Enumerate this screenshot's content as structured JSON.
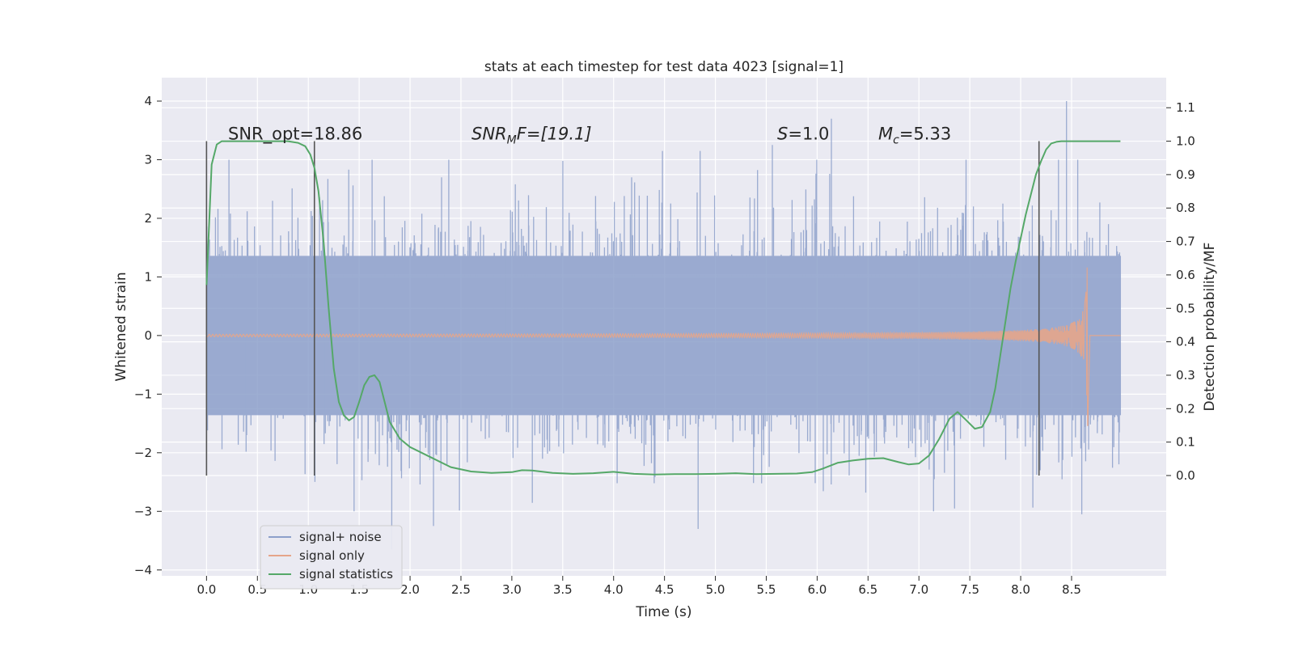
{
  "chart_data": {
    "type": "line",
    "title": "stats at each timestep for test data 4023 [signal=1]",
    "xlabel": "Time (s)",
    "ylabel": "Whitened strain",
    "ylabel_right": "Detection probability/MF",
    "xlim": [
      -0.44,
      9.43
    ],
    "ylim": [
      -4.1,
      4.4
    ],
    "ylim_right": [
      -0.3,
      1.19
    ],
    "x_ticks": [
      0.0,
      0.5,
      1.0,
      1.5,
      2.0,
      2.5,
      3.0,
      3.5,
      4.0,
      4.5,
      5.0,
      5.5,
      6.0,
      6.5,
      7.0,
      7.5,
      8.0,
      8.5
    ],
    "x_tick_labels": [
      "0.0",
      "0.5",
      "1.0",
      "1.5",
      "2.0",
      "2.5",
      "3.0",
      "3.5",
      "4.0",
      "4.5",
      "5.0",
      "5.5",
      "6.0",
      "6.5",
      "7.0",
      "7.5",
      "8.0",
      "8.5"
    ],
    "y_ticks": [
      4,
      3,
      2,
      1,
      0,
      -1,
      -2,
      -3,
      -4
    ],
    "y_tick_labels": [
      "4",
      "3",
      "2",
      "1",
      "0",
      "−1",
      "−2",
      "−3",
      "−4"
    ],
    "y_right_ticks": [
      1.1,
      1.0,
      0.9,
      0.8,
      0.7,
      0.6,
      0.5,
      0.4,
      0.3,
      0.2,
      0.1,
      0.0
    ],
    "y_right_tick_labels": [
      "1.1",
      "1.0",
      "0.9",
      "0.8",
      "0.7",
      "0.6",
      "0.5",
      "0.4",
      "0.3",
      "0.2",
      "0.1",
      "0.0"
    ],
    "grid": true,
    "legend_position": "lower-left",
    "annotations": {
      "snr_opt": "SNR_opt=18.86",
      "snr_mf_label": "SNR",
      "snr_mf_sub": "M",
      "snr_mf_rest": "F=[19.1]",
      "s_label": "S",
      "s_rest": "=1.0",
      "mc_label": "M",
      "mc_sub": "c",
      "mc_rest": "=5.33"
    },
    "vertical_markers_x": [
      0.0,
      1.06,
      8.18
    ],
    "series": [
      {
        "name": "signal+ noise",
        "axis": "left",
        "color": "#8da0cb",
        "x_range": [
          0.0,
          8.98
        ],
        "envelope_abs": 1.35,
        "notable_peaks": [
          {
            "x": 0.22,
            "y": 3.0
          },
          {
            "x": 2.31,
            "y": 2.7
          },
          {
            "x": 4.48,
            "y": 3.15
          },
          {
            "x": 4.85,
            "y": 3.15
          },
          {
            "x": 5.56,
            "y": 3.25
          },
          {
            "x": 6.14,
            "y": 3.7
          },
          {
            "x": 8.45,
            "y": 4.0
          },
          {
            "x": 1.82,
            "y": -3.65
          },
          {
            "x": 2.23,
            "y": -3.25
          },
          {
            "x": 4.83,
            "y": -3.3
          },
          {
            "x": 7.35,
            "y": -2.95
          },
          {
            "x": 8.6,
            "y": -3.05
          }
        ]
      },
      {
        "name": "signal only",
        "axis": "left",
        "color": "#e5a58a",
        "x_range": [
          0.0,
          8.98
        ],
        "x_end_chirp": 8.66,
        "max_amplitude": 1.55
      },
      {
        "name": "signal statistics",
        "axis": "right",
        "color": "#55a868",
        "x": [
          0.0,
          0.05,
          0.1,
          0.15,
          0.2,
          0.3,
          0.5,
          0.7,
          0.8,
          0.9,
          0.97,
          1.02,
          1.06,
          1.1,
          1.15,
          1.2,
          1.25,
          1.3,
          1.35,
          1.4,
          1.45,
          1.5,
          1.55,
          1.6,
          1.65,
          1.7,
          1.75,
          1.8,
          1.9,
          2.0,
          2.2,
          2.4,
          2.6,
          2.8,
          3.0,
          3.1,
          3.2,
          3.4,
          3.6,
          3.8,
          4.0,
          4.2,
          4.4,
          4.6,
          4.8,
          5.0,
          5.2,
          5.4,
          5.6,
          5.8,
          5.95,
          6.05,
          6.2,
          6.35,
          6.5,
          6.65,
          6.8,
          6.9,
          7.0,
          7.1,
          7.2,
          7.3,
          7.38,
          7.45,
          7.55,
          7.62,
          7.7,
          7.75,
          7.8,
          7.85,
          7.9,
          7.95,
          8.0,
          8.05,
          8.1,
          8.15,
          8.2,
          8.25,
          8.3,
          8.35,
          8.4,
          8.5,
          8.7,
          8.98
        ],
        "y": [
          0.57,
          0.93,
          0.99,
          1.0,
          1.0,
          1.0,
          1.0,
          1.0,
          1.0,
          0.995,
          0.985,
          0.96,
          0.92,
          0.85,
          0.7,
          0.5,
          0.32,
          0.22,
          0.18,
          0.165,
          0.175,
          0.22,
          0.27,
          0.295,
          0.3,
          0.28,
          0.22,
          0.16,
          0.11,
          0.085,
          0.055,
          0.025,
          0.012,
          0.008,
          0.01,
          0.016,
          0.015,
          0.008,
          0.005,
          0.007,
          0.011,
          0.005,
          0.003,
          0.004,
          0.004,
          0.005,
          0.007,
          0.004,
          0.005,
          0.006,
          0.01,
          0.02,
          0.038,
          0.045,
          0.05,
          0.052,
          0.04,
          0.033,
          0.036,
          0.06,
          0.11,
          0.17,
          0.19,
          0.17,
          0.14,
          0.145,
          0.19,
          0.26,
          0.36,
          0.46,
          0.56,
          0.64,
          0.71,
          0.78,
          0.84,
          0.9,
          0.94,
          0.975,
          0.993,
          0.998,
          1.0,
          1.0,
          1.0,
          1.0
        ]
      }
    ]
  }
}
